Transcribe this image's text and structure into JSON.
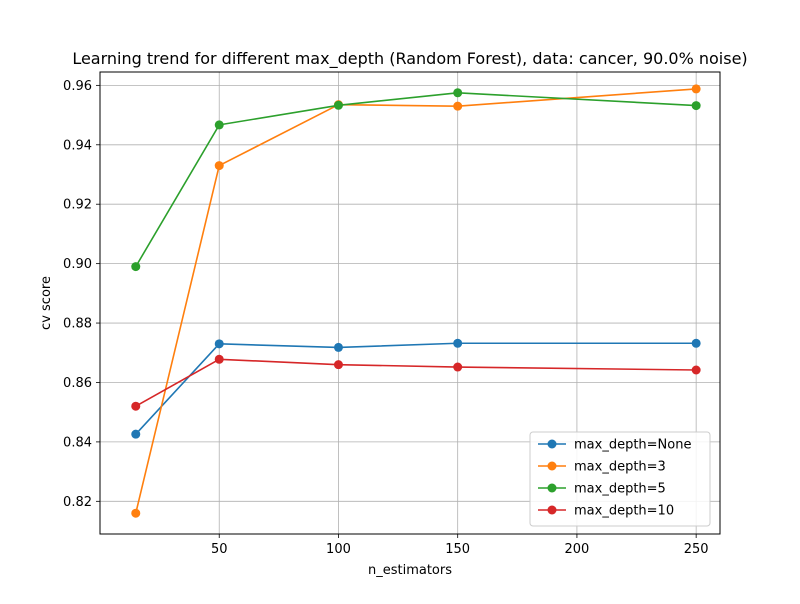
{
  "chart_data": {
    "type": "line",
    "title": "Learning trend for different max_depth (Random Forest), data: cancer, 90.0% noise)",
    "xlabel": "n_estimators",
    "ylabel": "cv score",
    "xlim": [
      0,
      260
    ],
    "ylim": [
      0.809,
      0.9645
    ],
    "xticks": [
      50,
      100,
      150,
      200,
      250
    ],
    "yticks": [
      0.82,
      0.84,
      0.86,
      0.88,
      0.9,
      0.92,
      0.94,
      0.96
    ],
    "grid": true,
    "legend_position": "lower right",
    "x": [
      15,
      50,
      100,
      150,
      250
    ],
    "series": [
      {
        "name": "max_depth=None",
        "color": "#1f77b4",
        "values": [
          0.8426,
          0.873,
          0.8718,
          0.8732,
          0.8732
        ]
      },
      {
        "name": "max_depth=3",
        "color": "#ff7f0e",
        "values": [
          0.816,
          0.933,
          0.9535,
          0.953,
          0.9588
        ]
      },
      {
        "name": "max_depth=5",
        "color": "#2ca02c",
        "values": [
          0.899,
          0.9467,
          0.9533,
          0.9575,
          0.9532
        ]
      },
      {
        "name": "max_depth=10",
        "color": "#d62728",
        "values": [
          0.852,
          0.8678,
          0.866,
          0.8652,
          0.8642
        ]
      }
    ]
  }
}
